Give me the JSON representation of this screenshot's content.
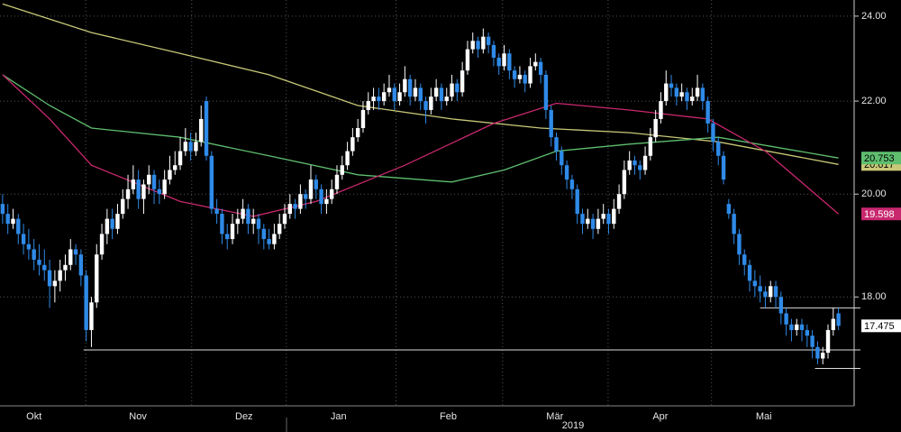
{
  "chart_data": {
    "type": "candlestick",
    "log": true,
    "grid": true,
    "ylim": [
      16.1,
      24.4
    ],
    "yticks": [
      {
        "value": 18,
        "label": "18.00"
      },
      {
        "value": 20,
        "label": "20.00"
      },
      {
        "value": 22,
        "label": "22.00"
      },
      {
        "value": 24,
        "label": "24.00"
      }
    ],
    "xlim": [
      -0.5,
      163
    ],
    "xticks": [
      {
        "value": -4,
        "label": "Okt"
      },
      {
        "value": 15.9,
        "label": "Nov"
      },
      {
        "value": 36.2,
        "label": "Dez"
      },
      {
        "value": 54.3,
        "label": "Jan"
      },
      {
        "value": 75.3,
        "label": "Feb"
      },
      {
        "value": 95.7,
        "label": "Mär"
      },
      {
        "value": 115.9,
        "label": "Apr"
      },
      {
        "value": 135.7,
        "label": "Mai"
      }
    ],
    "annotation": "2019",
    "up_color": "#ffffff",
    "down_color": "#2f8ae8",
    "last_tag": 17.475,
    "candles": [
      [
        19.8,
        20.0,
        19.4,
        19.6
      ],
      [
        19.6,
        19.8,
        19.2,
        19.4
      ],
      [
        19.4,
        19.7,
        19.3,
        19.5
      ],
      [
        19.5,
        19.6,
        19.0,
        19.2
      ],
      [
        19.2,
        19.4,
        18.8,
        19.0
      ],
      [
        19.0,
        19.3,
        18.7,
        18.9
      ],
      [
        18.9,
        19.1,
        18.5,
        18.7
      ],
      [
        18.7,
        19.0,
        18.4,
        18.6
      ],
      [
        18.6,
        18.9,
        18.3,
        18.5
      ],
      [
        18.5,
        18.7,
        17.8,
        18.2
      ],
      [
        18.2,
        18.5,
        17.9,
        18.3
      ],
      [
        18.3,
        18.7,
        18.1,
        18.5
      ],
      [
        18.5,
        18.8,
        18.3,
        18.6
      ],
      [
        18.6,
        19.1,
        18.5,
        18.9
      ],
      [
        18.9,
        19.0,
        18.6,
        18.8
      ],
      [
        18.8,
        18.9,
        18.2,
        18.4
      ],
      [
        18.4,
        18.5,
        17.2,
        17.4
      ],
      [
        17.4,
        18.0,
        17.1,
        17.9
      ],
      [
        17.9,
        19.0,
        17.8,
        18.8
      ],
      [
        18.8,
        19.4,
        18.7,
        19.2
      ],
      [
        19.2,
        19.7,
        19.0,
        19.5
      ],
      [
        19.5,
        19.7,
        19.1,
        19.3
      ],
      [
        19.3,
        19.8,
        19.2,
        19.6
      ],
      [
        19.6,
        20.1,
        19.5,
        19.9
      ],
      [
        19.9,
        20.4,
        19.7,
        20.1
      ],
      [
        20.1,
        20.6,
        20.0,
        20.3
      ],
      [
        20.3,
        20.5,
        19.7,
        19.9
      ],
      [
        19.9,
        20.3,
        19.6,
        20.2
      ],
      [
        20.2,
        20.6,
        20.0,
        20.4
      ],
      [
        20.4,
        20.5,
        19.8,
        20.1
      ],
      [
        20.1,
        20.3,
        19.8,
        20.0
      ],
      [
        20.0,
        20.5,
        19.9,
        20.3
      ],
      [
        20.3,
        20.8,
        20.2,
        20.5
      ],
      [
        20.5,
        20.9,
        20.4,
        20.6
      ],
      [
        20.6,
        21.2,
        20.5,
        20.9
      ],
      [
        20.9,
        21.4,
        20.8,
        21.1
      ],
      [
        21.1,
        21.3,
        20.7,
        20.9
      ],
      [
        20.9,
        21.3,
        20.8,
        21.1
      ],
      [
        21.1,
        21.9,
        21.0,
        21.6
      ],
      [
        22.0,
        22.1,
        20.7,
        20.8
      ],
      [
        20.8,
        20.9,
        19.6,
        19.7
      ],
      [
        19.7,
        19.9,
        19.4,
        19.6
      ],
      [
        19.6,
        19.7,
        19.0,
        19.2
      ],
      [
        19.2,
        19.4,
        18.9,
        19.1
      ],
      [
        19.1,
        19.6,
        19.0,
        19.4
      ],
      [
        19.4,
        19.7,
        19.2,
        19.5
      ],
      [
        19.5,
        19.9,
        19.4,
        19.7
      ],
      [
        19.7,
        19.8,
        19.2,
        19.4
      ],
      [
        19.4,
        19.7,
        19.2,
        19.5
      ],
      [
        19.5,
        19.6,
        19.0,
        19.3
      ],
      [
        19.3,
        19.4,
        18.9,
        19.1
      ],
      [
        19.1,
        19.3,
        18.9,
        19.0
      ],
      [
        19.0,
        19.4,
        18.9,
        19.2
      ],
      [
        19.2,
        19.6,
        19.1,
        19.4
      ],
      [
        19.4,
        19.8,
        19.3,
        19.6
      ],
      [
        19.6,
        20.0,
        19.5,
        19.8
      ],
      [
        19.8,
        19.9,
        19.5,
        19.7
      ],
      [
        19.7,
        20.2,
        19.6,
        20.0
      ],
      [
        20.0,
        20.1,
        19.7,
        19.9
      ],
      [
        19.9,
        20.6,
        19.8,
        20.3
      ],
      [
        20.3,
        20.4,
        19.9,
        20.1
      ],
      [
        20.1,
        20.2,
        19.6,
        19.8
      ],
      [
        19.8,
        20.1,
        19.6,
        19.9
      ],
      [
        19.9,
        20.3,
        19.8,
        20.1
      ],
      [
        20.1,
        20.6,
        20.0,
        20.4
      ],
      [
        20.4,
        20.8,
        20.3,
        20.6
      ],
      [
        20.6,
        21.1,
        20.5,
        20.9
      ],
      [
        20.9,
        21.4,
        20.8,
        21.2
      ],
      [
        21.2,
        21.6,
        21.1,
        21.4
      ],
      [
        21.4,
        22.0,
        21.3,
        21.8
      ],
      [
        21.8,
        22.2,
        21.7,
        22.0
      ],
      [
        22.0,
        22.3,
        21.8,
        22.1
      ],
      [
        22.1,
        22.3,
        21.8,
        22.0
      ],
      [
        22.0,
        22.4,
        21.9,
        22.2
      ],
      [
        22.2,
        22.6,
        22.1,
        22.3
      ],
      [
        22.3,
        22.4,
        21.8,
        22.0
      ],
      [
        22.0,
        22.4,
        21.9,
        22.2
      ],
      [
        22.2,
        22.8,
        22.1,
        22.5
      ],
      [
        22.5,
        22.6,
        21.9,
        22.1
      ],
      [
        22.1,
        22.5,
        22.0,
        22.3
      ],
      [
        22.3,
        22.4,
        21.8,
        22.0
      ],
      [
        22.0,
        22.1,
        21.5,
        21.8
      ],
      [
        21.8,
        22.3,
        21.7,
        22.1
      ],
      [
        22.1,
        22.5,
        22.0,
        22.3
      ],
      [
        22.3,
        22.4,
        21.8,
        22.0
      ],
      [
        22.0,
        22.3,
        21.9,
        22.1
      ],
      [
        22.1,
        22.6,
        22.0,
        22.4
      ],
      [
        22.4,
        22.5,
        22.0,
        22.2
      ],
      [
        22.2,
        22.9,
        22.1,
        22.7
      ],
      [
        22.7,
        23.4,
        22.6,
        23.2
      ],
      [
        23.2,
        23.6,
        23.1,
        23.4
      ],
      [
        23.4,
        23.5,
        23.0,
        23.2
      ],
      [
        23.2,
        23.7,
        23.1,
        23.5
      ],
      [
        23.5,
        23.6,
        23.1,
        23.3
      ],
      [
        23.3,
        23.4,
        22.8,
        23.0
      ],
      [
        23.0,
        23.1,
        22.6,
        22.8
      ],
      [
        22.8,
        23.3,
        22.7,
        23.1
      ],
      [
        23.1,
        23.2,
        22.5,
        22.7
      ],
      [
        22.7,
        22.8,
        22.3,
        22.5
      ],
      [
        22.5,
        22.8,
        22.4,
        22.6
      ],
      [
        22.6,
        22.7,
        22.2,
        22.4
      ],
      [
        22.4,
        23.0,
        22.3,
        22.8
      ],
      [
        22.8,
        23.1,
        22.7,
        22.9
      ],
      [
        22.9,
        23.0,
        22.4,
        22.6
      ],
      [
        22.6,
        22.7,
        21.6,
        21.8
      ],
      [
        21.8,
        21.9,
        21.0,
        21.2
      ],
      [
        21.2,
        21.3,
        20.7,
        20.9
      ],
      [
        20.9,
        21.0,
        20.4,
        20.6
      ],
      [
        20.6,
        20.7,
        20.1,
        20.3
      ],
      [
        20.3,
        20.4,
        19.9,
        20.1
      ],
      [
        20.1,
        20.2,
        19.4,
        19.6
      ],
      [
        19.6,
        19.7,
        19.2,
        19.4
      ],
      [
        19.4,
        19.7,
        19.3,
        19.5
      ],
      [
        19.5,
        19.6,
        19.1,
        19.3
      ],
      [
        19.3,
        19.7,
        19.2,
        19.5
      ],
      [
        19.5,
        19.8,
        19.4,
        19.6
      ],
      [
        19.6,
        19.7,
        19.2,
        19.4
      ],
      [
        19.4,
        19.9,
        19.3,
        19.7
      ],
      [
        19.7,
        20.2,
        19.6,
        20.0
      ],
      [
        20.0,
        20.7,
        19.9,
        20.5
      ],
      [
        20.5,
        20.9,
        20.4,
        20.7
      ],
      [
        20.7,
        20.8,
        20.4,
        20.6
      ],
      [
        20.6,
        20.7,
        20.3,
        20.5
      ],
      [
        20.5,
        21.0,
        20.4,
        20.8
      ],
      [
        20.8,
        21.4,
        20.7,
        21.2
      ],
      [
        21.2,
        21.8,
        21.1,
        21.6
      ],
      [
        21.6,
        22.2,
        21.5,
        22.0
      ],
      [
        22.0,
        22.7,
        21.9,
        22.4
      ],
      [
        22.4,
        22.6,
        22.1,
        22.3
      ],
      [
        22.3,
        22.4,
        21.9,
        22.1
      ],
      [
        22.1,
        22.4,
        22.0,
        22.2
      ],
      [
        22.2,
        22.3,
        21.8,
        22.0
      ],
      [
        22.0,
        22.3,
        21.9,
        22.1
      ],
      [
        22.1,
        22.6,
        22.0,
        22.3
      ],
      [
        22.3,
        22.4,
        21.8,
        22.0
      ],
      [
        22.0,
        22.1,
        21.3,
        21.5
      ],
      [
        21.5,
        21.6,
        20.9,
        21.1
      ],
      [
        21.1,
        21.2,
        20.6,
        20.8
      ],
      [
        20.8,
        20.9,
        20.2,
        20.3
      ],
      [
        19.8,
        19.9,
        19.5,
        19.6
      ],
      [
        19.6,
        19.7,
        19.0,
        19.2
      ],
      [
        19.2,
        19.3,
        18.6,
        18.8
      ],
      [
        18.8,
        18.9,
        18.4,
        18.6
      ],
      [
        18.6,
        18.7,
        18.1,
        18.3
      ],
      [
        18.3,
        18.5,
        18.0,
        18.2
      ],
      [
        18.2,
        18.4,
        17.9,
        18.1
      ],
      [
        18.1,
        18.2,
        17.8,
        18.0
      ],
      [
        18.0,
        18.3,
        17.9,
        18.2
      ],
      [
        18.2,
        18.3,
        17.8,
        18.0
      ],
      [
        18.0,
        18.1,
        17.5,
        17.7
      ],
      [
        17.7,
        17.8,
        17.3,
        17.5
      ],
      [
        17.5,
        17.6,
        17.2,
        17.4
      ],
      [
        17.4,
        17.6,
        17.3,
        17.5
      ],
      [
        17.5,
        17.6,
        17.2,
        17.4
      ],
      [
        17.4,
        17.5,
        17.1,
        17.3
      ],
      [
        17.3,
        17.4,
        16.9,
        17.1
      ],
      [
        17.1,
        17.2,
        16.8,
        16.9
      ],
      [
        16.9,
        17.1,
        16.8,
        17.0
      ],
      [
        17.0,
        17.5,
        16.9,
        17.4
      ],
      [
        17.4,
        17.8,
        17.3,
        17.6
      ],
      [
        17.7,
        17.8,
        17.4,
        17.475
      ]
    ],
    "series": [
      {
        "color": "#c8c878",
        "x": [
          0,
          17,
          34,
          51,
          68,
          86,
          103,
          120,
          137,
          160
        ],
        "values": [
          24.3,
          23.6,
          23.1,
          22.6,
          21.9,
          21.6,
          21.4,
          21.3,
          21.1,
          20.617
        ],
        "tag": 20.617
      },
      {
        "color": "#5fbf6f",
        "x": [
          0,
          9,
          17,
          34,
          51,
          68,
          86,
          96,
          106,
          120,
          137,
          160
        ],
        "values": [
          22.6,
          21.9,
          21.4,
          21.2,
          20.8,
          20.4,
          20.25,
          20.5,
          20.9,
          21.05,
          21.2,
          20.753
        ],
        "tag": 20.753
      },
      {
        "color": "#c8286e",
        "x": [
          0,
          9,
          17,
          34,
          48,
          60,
          77,
          94,
          106,
          120,
          135,
          146,
          160
        ],
        "values": [
          22.6,
          21.6,
          20.6,
          19.85,
          19.55,
          19.85,
          20.6,
          21.5,
          21.95,
          21.8,
          21.6,
          20.9,
          19.598
        ],
        "tag": 19.598
      }
    ],
    "levels": [
      {
        "value": 17.05,
        "from": 15.5
      },
      {
        "value": 17.8,
        "from": 145
      },
      {
        "value": 16.73,
        "from": 155.5
      }
    ]
  }
}
